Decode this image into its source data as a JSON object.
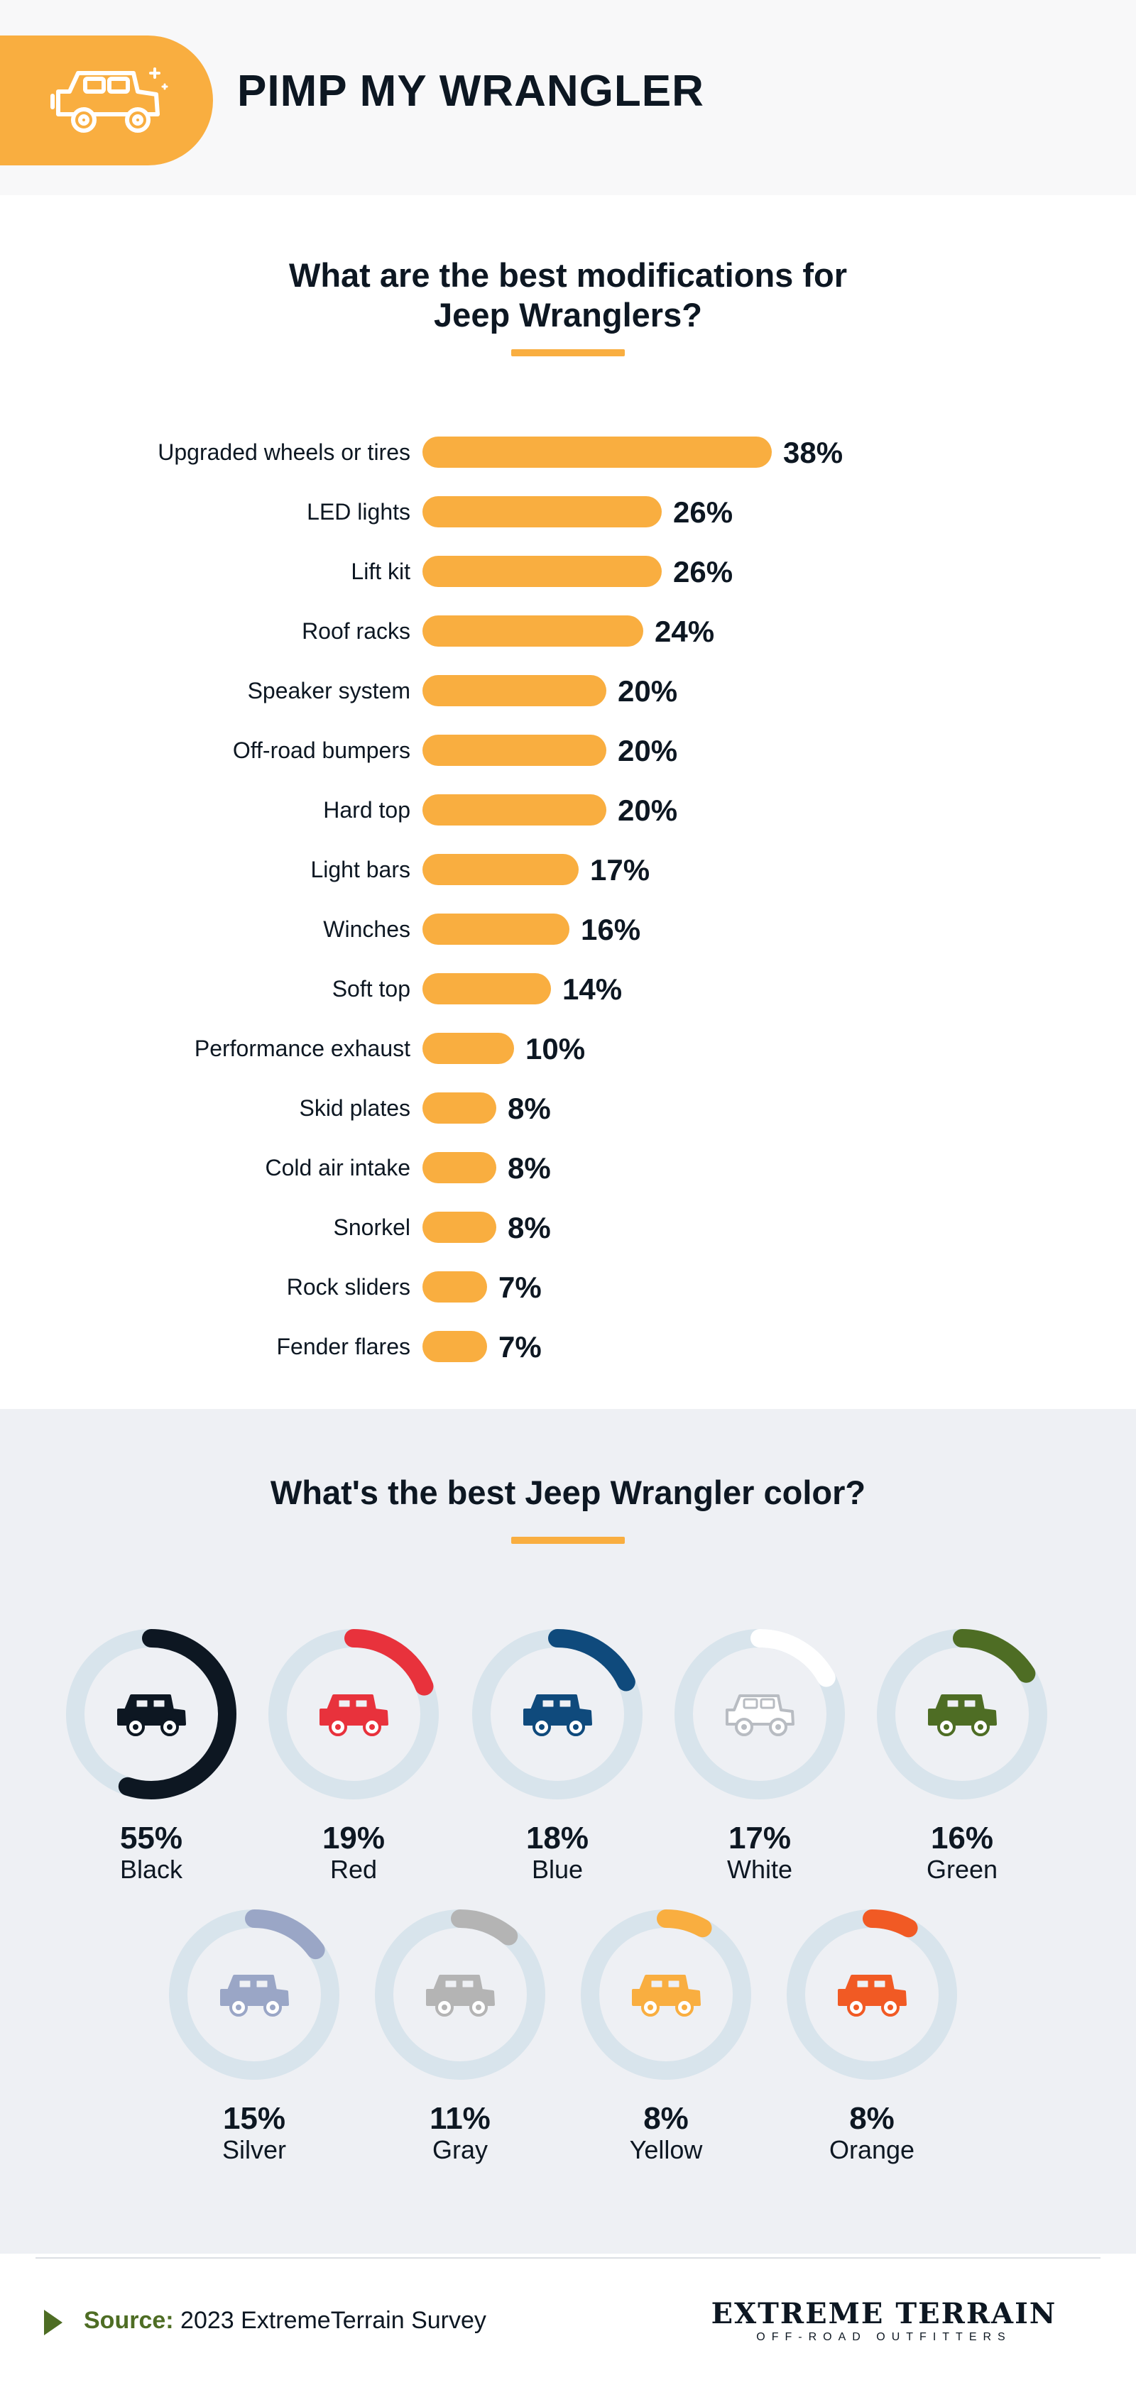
{
  "header": {
    "title": "PIMP MY WRANGLER",
    "icon": "jeep-icon",
    "accent_color": "#f9ae40"
  },
  "section_mods": {
    "heading_line1": "What are the best modifications for",
    "heading_line2": "Jeep Wranglers?"
  },
  "section_colors": {
    "heading": "What's the best Jeep Wrangler color?"
  },
  "footer": {
    "source_label": "Source:",
    "source_text": "2023 ExtremeTerrain Survey",
    "logo_main": "EXTREME TERRAIN",
    "logo_sub": "OFF-ROAD OUTFITTERS"
  },
  "chart_data": [
    {
      "type": "bar",
      "orientation": "horizontal",
      "title": "What are the best modifications for Jeep Wranglers?",
      "categories": [
        "Upgraded wheels or tires",
        "LED lights",
        "Lift kit",
        "Roof racks",
        "Speaker system",
        "Off-road bumpers",
        "Hard top",
        "Light bars",
        "Winches",
        "Soft top",
        "Performance exhaust",
        "Skid plates",
        "Cold air intake",
        "Snorkel",
        "Rock sliders",
        "Fender flares"
      ],
      "values": [
        38,
        26,
        26,
        24,
        20,
        20,
        20,
        17,
        16,
        14,
        10,
        8,
        8,
        8,
        7,
        7
      ],
      "value_suffix": "%",
      "bar_color": "#f9ae40"
    },
    {
      "type": "pie",
      "style": "donut",
      "title": "What's the best Jeep Wrangler color?",
      "categories": [
        "Black",
        "Red",
        "Blue",
        "White",
        "Green",
        "Silver",
        "Gray",
        "Yellow",
        "Orange"
      ],
      "values": [
        55,
        19,
        18,
        17,
        16,
        15,
        11,
        8,
        8
      ],
      "value_suffix": "%",
      "colors": [
        "#0d1722",
        "#e8323c",
        "#0f4a7c",
        "#ffffff",
        "#4e6d24",
        "#9aa6c6",
        "#b4b4b4",
        "#f9ae40",
        "#f15a24"
      ],
      "track_color": "#d8e4ec"
    }
  ]
}
